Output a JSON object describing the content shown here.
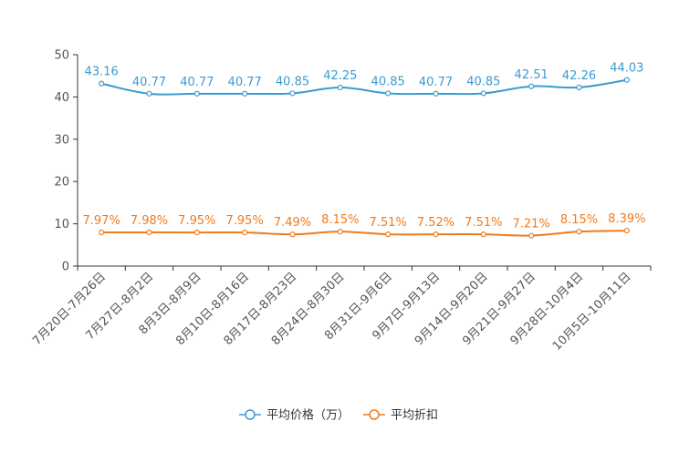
{
  "chart_data": {
    "type": "line",
    "title": "",
    "xlabel": "",
    "ylabel": "",
    "ylim": [
      0,
      50
    ],
    "yticks": [
      0,
      10,
      20,
      30,
      40,
      50
    ],
    "grid": false,
    "legend_position": "bottom-center",
    "categories": [
      "7月20日-7月26日",
      "7月27日-8月2日",
      "8月3日-8月9日",
      "8月10日-8月16日",
      "8月17日-8月23日",
      "8月24日-8月30日",
      "8月31日-9月6日",
      "9月7日-9月13日",
      "9月14日-9月20日",
      "9月21日-9月27日",
      "9月28日-10月4日",
      "10月5日-10月11日"
    ],
    "series": [
      {
        "name": "平均价格（万）",
        "color": "#3a9bd0",
        "values": [
          43.16,
          40.77,
          40.77,
          40.77,
          40.85,
          42.25,
          40.85,
          40.77,
          40.85,
          42.51,
          42.26,
          44.03
        ],
        "labels": [
          "43.16",
          "40.77",
          "40.77",
          "40.77",
          "40.85",
          "42.25",
          "40.85",
          "40.77",
          "40.85",
          "42.51",
          "42.26",
          "44.03"
        ]
      },
      {
        "name": "平均折扣",
        "color": "#f07b1c",
        "values": [
          7.97,
          7.98,
          7.95,
          7.95,
          7.49,
          8.15,
          7.51,
          7.52,
          7.51,
          7.21,
          8.15,
          8.39
        ],
        "labels": [
          "7.97%",
          "7.98%",
          "7.95%",
          "7.95%",
          "7.49%",
          "8.15%",
          "7.51%",
          "7.52%",
          "7.51%",
          "7.21%",
          "8.15%",
          "8.39%"
        ]
      }
    ]
  }
}
